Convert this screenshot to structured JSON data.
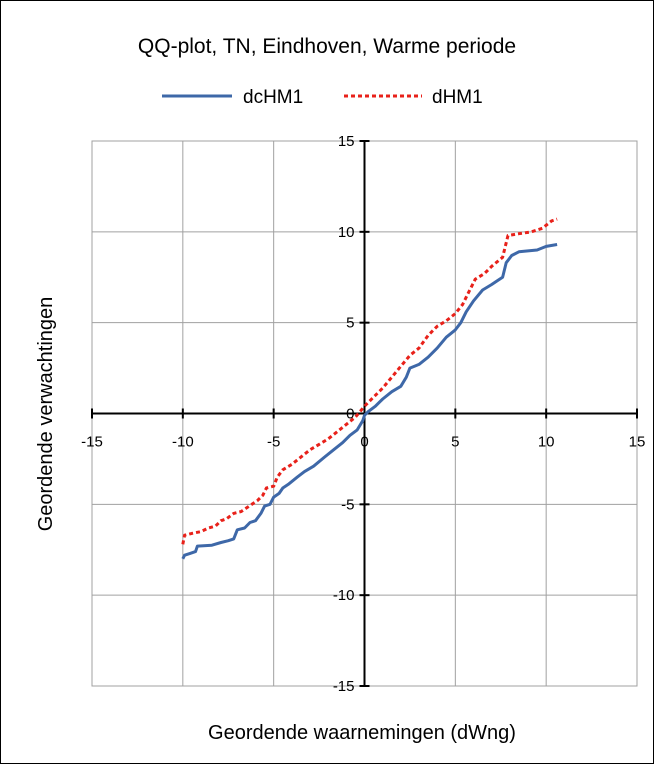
{
  "chart_data": {
    "type": "line",
    "title": "QQ-plot, TN, Eindhoven, Warme periode",
    "xlabel": "Geordende waarnemingen (dWng)",
    "ylabel": "Geordende verwachtingen",
    "xlim": [
      -15,
      15
    ],
    "ylim": [
      -15,
      15
    ],
    "x_ticks": [
      -15,
      -10,
      -5,
      0,
      5,
      10,
      15
    ],
    "y_ticks": [
      -15,
      -10,
      -5,
      0,
      5,
      10,
      15
    ],
    "x_tick_labels": [
      "-15",
      "-10",
      "-5",
      "0",
      "5",
      "10",
      "15"
    ],
    "y_tick_labels": [
      "-15",
      "-10",
      "-5",
      "0",
      "5",
      "10",
      "15"
    ],
    "grid": true,
    "legend_position": "top",
    "series": [
      {
        "name": "dcHM1",
        "color": "#3e68a8",
        "dash": "solid",
        "points": [
          [
            -10.0,
            -8.0
          ],
          [
            -9.9,
            -7.8
          ],
          [
            -9.6,
            -7.7
          ],
          [
            -9.3,
            -7.6
          ],
          [
            -9.2,
            -7.3
          ],
          [
            -8.4,
            -7.25
          ],
          [
            -7.9,
            -7.1
          ],
          [
            -7.5,
            -7.0
          ],
          [
            -7.2,
            -6.9
          ],
          [
            -7.0,
            -6.4
          ],
          [
            -6.6,
            -6.3
          ],
          [
            -6.3,
            -6.0
          ],
          [
            -6.0,
            -5.9
          ],
          [
            -5.7,
            -5.5
          ],
          [
            -5.5,
            -5.1
          ],
          [
            -5.2,
            -5.0
          ],
          [
            -5.0,
            -4.6
          ],
          [
            -4.7,
            -4.4
          ],
          [
            -4.5,
            -4.1
          ],
          [
            -4.2,
            -3.9
          ],
          [
            -3.7,
            -3.5
          ],
          [
            -3.3,
            -3.2
          ],
          [
            -2.8,
            -2.9
          ],
          [
            -2.2,
            -2.4
          ],
          [
            -1.7,
            -2.0
          ],
          [
            -1.2,
            -1.6
          ],
          [
            -0.8,
            -1.2
          ],
          [
            -0.4,
            -0.9
          ],
          [
            -0.1,
            -0.4
          ],
          [
            0.0,
            -0.1
          ],
          [
            0.2,
            0.1
          ],
          [
            0.6,
            0.4
          ],
          [
            1.0,
            0.8
          ],
          [
            1.5,
            1.2
          ],
          [
            2.0,
            1.5
          ],
          [
            2.3,
            2.0
          ],
          [
            2.5,
            2.5
          ],
          [
            3.0,
            2.7
          ],
          [
            3.5,
            3.1
          ],
          [
            4.0,
            3.6
          ],
          [
            4.5,
            4.2
          ],
          [
            5.0,
            4.6
          ],
          [
            5.3,
            5.0
          ],
          [
            5.6,
            5.6
          ],
          [
            6.0,
            6.2
          ],
          [
            6.5,
            6.8
          ],
          [
            7.0,
            7.1
          ],
          [
            7.3,
            7.3
          ],
          [
            7.6,
            7.5
          ],
          [
            7.8,
            8.3
          ],
          [
            8.1,
            8.7
          ],
          [
            8.5,
            8.9
          ],
          [
            9.5,
            9.0
          ],
          [
            10.0,
            9.2
          ],
          [
            10.6,
            9.3
          ]
        ]
      },
      {
        "name": "dHM1",
        "color": "#e8211a",
        "dash": "dashed",
        "points": [
          [
            -10.0,
            -7.2
          ],
          [
            -9.9,
            -6.7
          ],
          [
            -9.5,
            -6.6
          ],
          [
            -9.0,
            -6.5
          ],
          [
            -8.6,
            -6.3
          ],
          [
            -8.2,
            -6.2
          ],
          [
            -7.9,
            -5.9
          ],
          [
            -7.6,
            -5.8
          ],
          [
            -7.2,
            -5.5
          ],
          [
            -6.8,
            -5.4
          ],
          [
            -6.5,
            -5.2
          ],
          [
            -6.2,
            -5.0
          ],
          [
            -5.9,
            -4.8
          ],
          [
            -5.6,
            -4.5
          ],
          [
            -5.4,
            -4.1
          ],
          [
            -5.0,
            -4.0
          ],
          [
            -4.8,
            -3.5
          ],
          [
            -4.5,
            -3.1
          ],
          [
            -4.0,
            -2.8
          ],
          [
            -3.5,
            -2.4
          ],
          [
            -3.0,
            -2.0
          ],
          [
            -2.5,
            -1.7
          ],
          [
            -2.0,
            -1.4
          ],
          [
            -1.5,
            -1.0
          ],
          [
            -1.0,
            -0.6
          ],
          [
            -0.5,
            -0.2
          ],
          [
            0.0,
            0.4
          ],
          [
            0.5,
            0.9
          ],
          [
            1.0,
            1.4
          ],
          [
            1.5,
            2.0
          ],
          [
            2.0,
            2.6
          ],
          [
            2.5,
            3.2
          ],
          [
            3.0,
            3.6
          ],
          [
            3.5,
            4.3
          ],
          [
            4.0,
            4.8
          ],
          [
            4.5,
            5.1
          ],
          [
            5.0,
            5.5
          ],
          [
            5.4,
            6.0
          ],
          [
            5.7,
            6.6
          ],
          [
            6.1,
            7.4
          ],
          [
            6.6,
            7.7
          ],
          [
            7.0,
            8.1
          ],
          [
            7.6,
            8.6
          ],
          [
            7.9,
            9.8
          ],
          [
            8.5,
            9.9
          ],
          [
            9.2,
            10.0
          ],
          [
            9.8,
            10.2
          ],
          [
            10.3,
            10.6
          ],
          [
            10.6,
            10.7
          ]
        ]
      }
    ]
  }
}
